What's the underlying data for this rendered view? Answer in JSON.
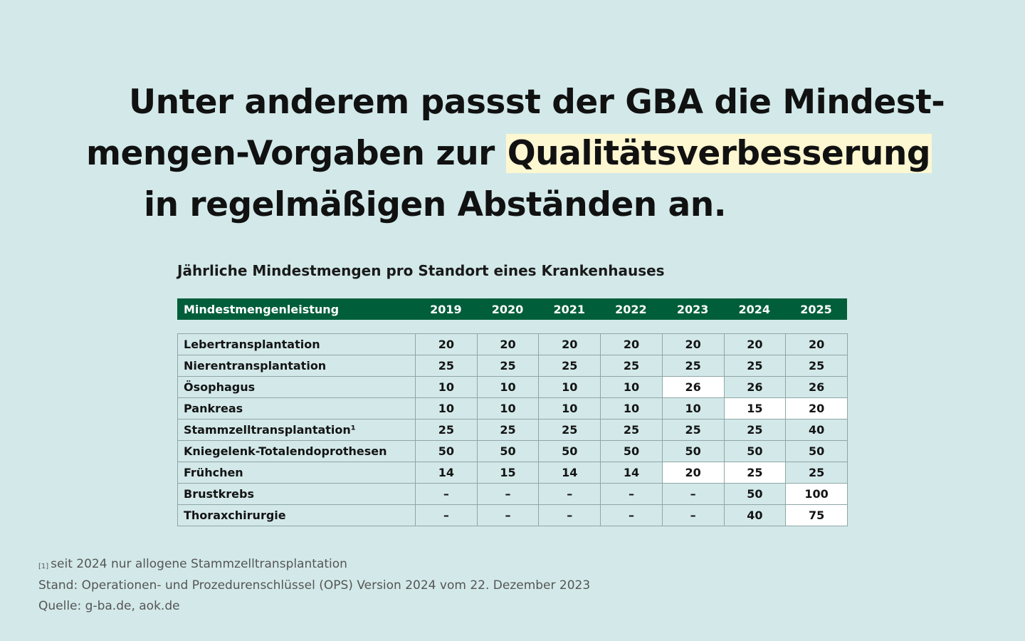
{
  "headline": {
    "line1": "Unter anderem passst der GBA die Mindest-",
    "line2_pre": "mengen-Vorgaben zur ",
    "line2_highlight": "Qualitätsverbesserung",
    "line3": "in regelmäßigen Abständen an."
  },
  "subtitle": "Jährliche Mindestmengen pro Standort eines Krankenhauses",
  "table": {
    "header_label": "Mindestmengenleistung",
    "years": [
      "2019",
      "2020",
      "2021",
      "2022",
      "2023",
      "2024",
      "2025"
    ],
    "rows": [
      {
        "label": "Lebertransplantation",
        "values": [
          "20",
          "20",
          "20",
          "20",
          "20",
          "20",
          "20"
        ],
        "highlighted": []
      },
      {
        "label": "Nierentransplantation",
        "values": [
          "25",
          "25",
          "25",
          "25",
          "25",
          "25",
          "25"
        ],
        "highlighted": []
      },
      {
        "label": "Ösophagus",
        "values": [
          "10",
          "10",
          "10",
          "10",
          "26",
          "26",
          "26"
        ],
        "highlighted": [
          "2023"
        ]
      },
      {
        "label": "Pankreas",
        "values": [
          "10",
          "10",
          "10",
          "10",
          "10",
          "15",
          "20"
        ],
        "highlighted": [
          "2024",
          "2025"
        ]
      },
      {
        "label": "Stammzelltransplantation¹",
        "values": [
          "25",
          "25",
          "25",
          "25",
          "25",
          "25",
          "40"
        ],
        "highlighted": []
      },
      {
        "label": "Kniegelenk-Totalendoprothesen",
        "values": [
          "50",
          "50",
          "50",
          "50",
          "50",
          "50",
          "50"
        ],
        "highlighted": []
      },
      {
        "label": "Frühchen",
        "values": [
          "14",
          "15",
          "14",
          "14",
          "20",
          "25",
          "25"
        ],
        "highlighted": [
          "2023",
          "2024"
        ]
      },
      {
        "label": "Brustkrebs",
        "values": [
          "–",
          "–",
          "–",
          "–",
          "–",
          "50",
          "100"
        ],
        "highlighted": [
          "2025"
        ]
      },
      {
        "label": "Thoraxchirurgie",
        "values": [
          "–",
          "–",
          "–",
          "–",
          "–",
          "40",
          "75"
        ],
        "highlighted": [
          "2025"
        ]
      }
    ]
  },
  "footnotes": {
    "marker": "[1]",
    "note1": "seit 2024 nur allogene Stammzelltransplantation",
    "note2": "Stand: Operationen- und Prozedurenschlüssel (OPS) Version 2024 vom 22. Dezember 2023",
    "note3": "Quelle: g-ba.de, aok.de"
  },
  "colors": {
    "background": "#d3e9e9",
    "header_bar": "#005e3a",
    "highlight": "#fdf7d2",
    "cell_highlight": "#ffffff"
  }
}
